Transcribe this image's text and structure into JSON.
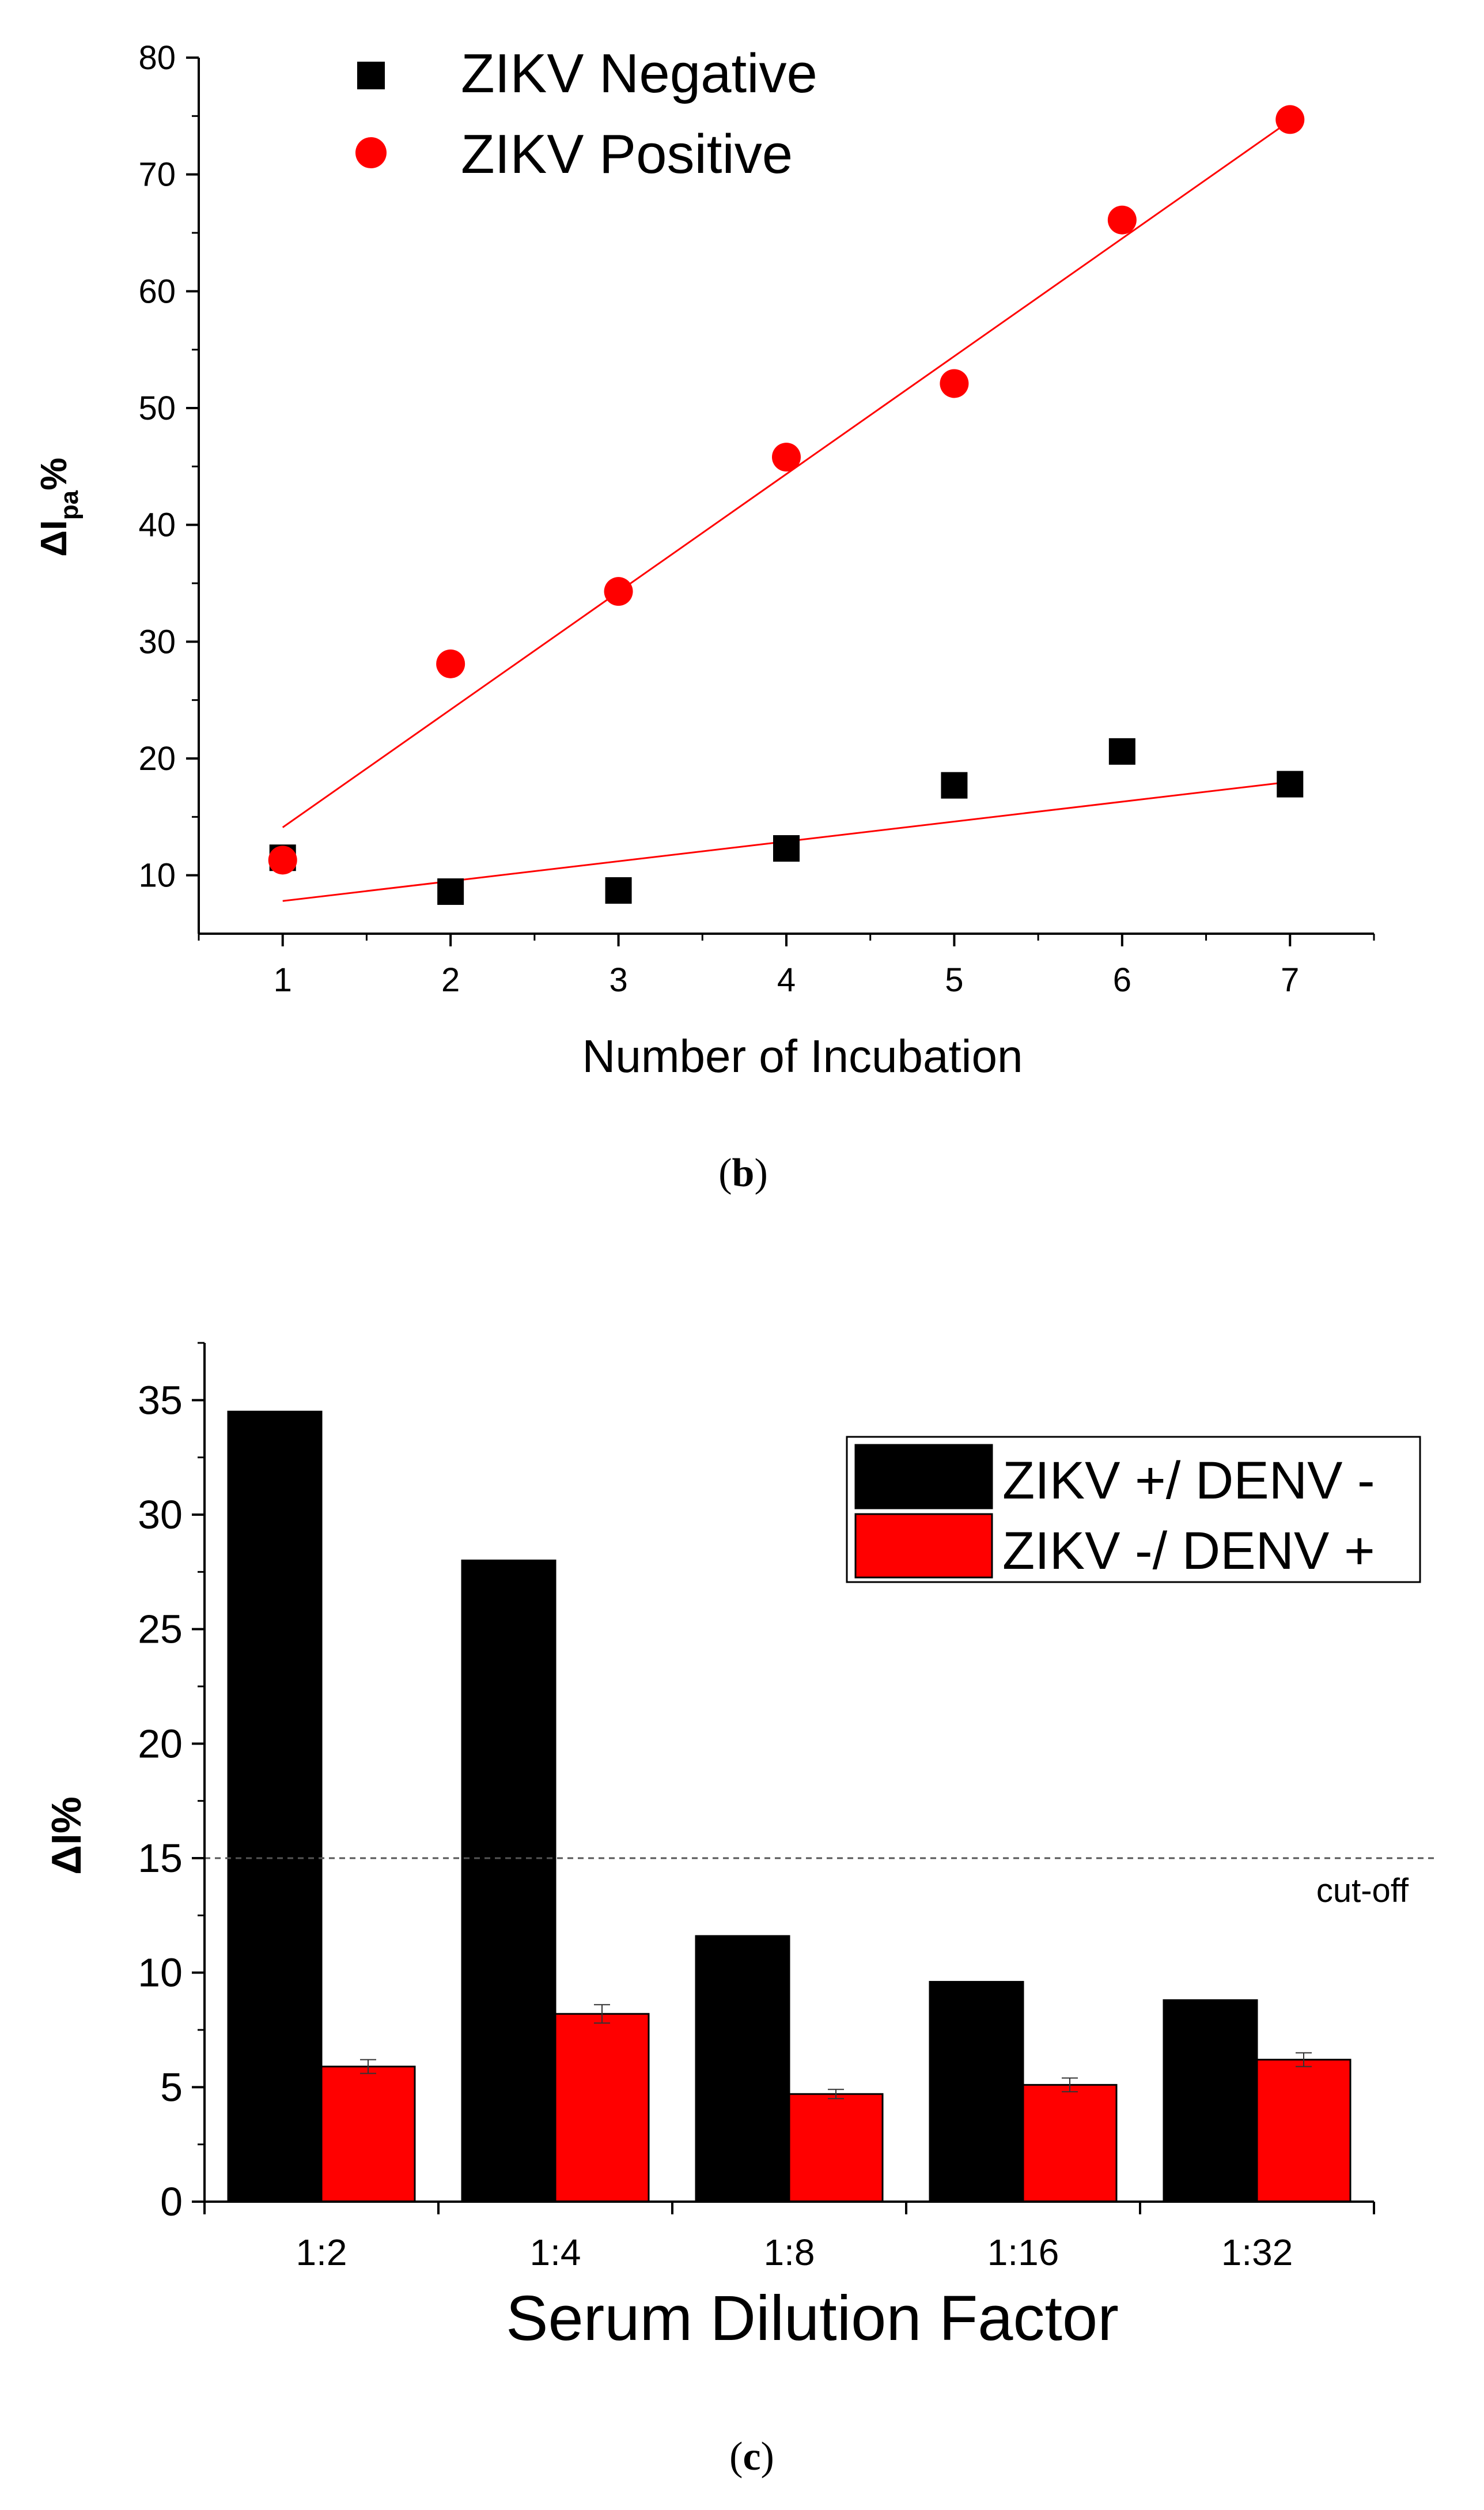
{
  "chart_data": [
    {
      "panel_label": "b",
      "type": "scatter",
      "xlabel": "Number of Incubation",
      "ylabel": {
        "base": "ΔI",
        "subscript": "pa",
        "suffix": "%"
      },
      "xlim": [
        0.5,
        7.5
      ],
      "ylim": [
        5,
        80
      ],
      "xticks": [
        1,
        2,
        3,
        4,
        5,
        6,
        7
      ],
      "yticks": [
        10,
        20,
        30,
        40,
        50,
        60,
        70,
        80
      ],
      "grid": false,
      "legend_position": "top-left",
      "series": [
        {
          "name": "ZIKV Negative",
          "marker": "square",
          "color": "#000000",
          "x": [
            1,
            2,
            3,
            4,
            5,
            6,
            7
          ],
          "y": [
            11.5,
            8.6,
            8.7,
            12.3,
            17.7,
            20.6,
            17.8
          ],
          "fit": {
            "x": [
              1,
              7
            ],
            "y": [
              7.8,
              18.0
            ],
            "color": "#ff0000"
          }
        },
        {
          "name": "ZIKV Positive",
          "marker": "circle",
          "color": "#ff0000",
          "x": [
            1,
            2,
            3,
            4,
            5,
            6,
            7
          ],
          "y": [
            11.3,
            28.1,
            34.3,
            45.8,
            52.1,
            66.1,
            74.7
          ],
          "fit": {
            "x": [
              1,
              7
            ],
            "y": [
              14.1,
              74.6
            ],
            "color": "#ff0000"
          }
        }
      ]
    },
    {
      "panel_label": "c",
      "type": "bar",
      "xlabel": "Serum Dilution Factor",
      "ylabel": "ΔI%",
      "categories": [
        "1:2",
        "1:4",
        "1:8",
        "1:16",
        "1:32"
      ],
      "ylim": [
        0,
        37.5
      ],
      "yticks": [
        0,
        5,
        10,
        15,
        20,
        25,
        30,
        35
      ],
      "grid": false,
      "legend_position": "top-right",
      "series": [
        {
          "name": "ZIKV +/ DENV -",
          "color": "#000000",
          "values": [
            34.5,
            28.0,
            11.6,
            9.6,
            8.8
          ],
          "errors": [
            0,
            0,
            0,
            0,
            0
          ]
        },
        {
          "name": "ZIKV -/ DENV +",
          "color": "#ff0000",
          "values": [
            5.9,
            8.2,
            4.7,
            5.1,
            6.2
          ],
          "errors": [
            0.3,
            0.4,
            0.2,
            0.3,
            0.3
          ]
        }
      ],
      "reference_line": {
        "value": 15,
        "label": "cut-off"
      }
    }
  ]
}
